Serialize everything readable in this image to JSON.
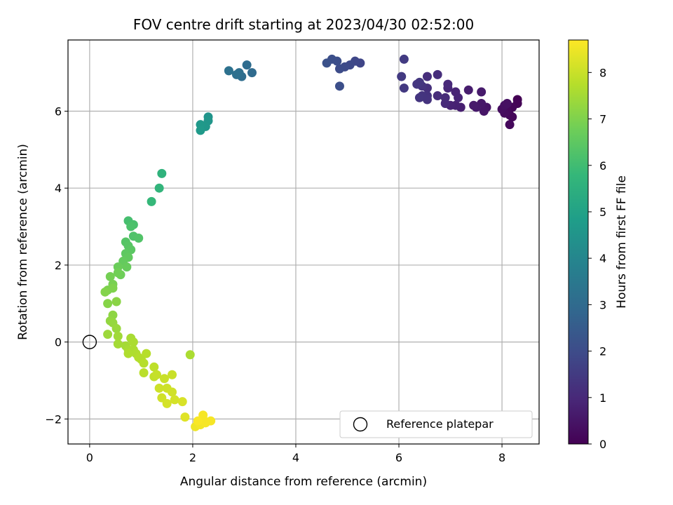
{
  "chart_data": {
    "type": "scatter",
    "title": "FOV centre drift starting at 2023/04/30 02:52:00",
    "xlabel": "Angular distance from reference (arcmin)",
    "ylabel": "Rotation from reference (arcmin)",
    "xlim": [
      -0.42,
      8.72
    ],
    "ylim": [
      -2.65,
      7.85
    ],
    "xticks": [
      0,
      2,
      4,
      6,
      8
    ],
    "yticks": [
      -2,
      0,
      2,
      4,
      6
    ],
    "grid": true,
    "colormap": "viridis",
    "colorbar": {
      "label": "Hours from first FF file",
      "range": [
        0,
        8.7
      ],
      "ticks": [
        0,
        1,
        2,
        3,
        4,
        5,
        6,
        7,
        8
      ]
    },
    "legend": {
      "position": "bottom-right",
      "entries": [
        "Reference platepar"
      ]
    },
    "reference_point": {
      "x": 0,
      "y": 0
    },
    "points": [
      {
        "x": 8.3,
        "y": 6.3,
        "c": 0.0
      },
      {
        "x": 8.3,
        "y": 6.2,
        "c": 0.05
      },
      {
        "x": 8.2,
        "y": 6.1,
        "c": 0.1
      },
      {
        "x": 8.15,
        "y": 5.9,
        "c": 0.12
      },
      {
        "x": 8.2,
        "y": 5.85,
        "c": 0.15
      },
      {
        "x": 8.15,
        "y": 5.65,
        "c": 0.18
      },
      {
        "x": 8.1,
        "y": 6.0,
        "c": 0.2
      },
      {
        "x": 8.05,
        "y": 5.95,
        "c": 0.25
      },
      {
        "x": 8.0,
        "y": 6.05,
        "c": 0.3
      },
      {
        "x": 8.05,
        "y": 6.15,
        "c": 0.35
      },
      {
        "x": 8.1,
        "y": 6.2,
        "c": 0.38
      },
      {
        "x": 7.7,
        "y": 6.1,
        "c": 0.45
      },
      {
        "x": 7.65,
        "y": 6.0,
        "c": 0.5
      },
      {
        "x": 7.6,
        "y": 6.2,
        "c": 0.55
      },
      {
        "x": 7.5,
        "y": 6.1,
        "c": 0.6
      },
      {
        "x": 7.45,
        "y": 6.15,
        "c": 0.62
      },
      {
        "x": 7.6,
        "y": 6.5,
        "c": 0.65
      },
      {
        "x": 7.35,
        "y": 6.55,
        "c": 0.7
      },
      {
        "x": 7.2,
        "y": 6.1,
        "c": 0.75
      },
      {
        "x": 7.1,
        "y": 6.15,
        "c": 0.8
      },
      {
        "x": 7.0,
        "y": 6.15,
        "c": 0.85
      },
      {
        "x": 7.1,
        "y": 6.5,
        "c": 0.88
      },
      {
        "x": 7.15,
        "y": 6.35,
        "c": 0.9
      },
      {
        "x": 6.95,
        "y": 6.6,
        "c": 0.95
      },
      {
        "x": 6.95,
        "y": 6.7,
        "c": 1.0
      },
      {
        "x": 6.9,
        "y": 6.2,
        "c": 1.02
      },
      {
        "x": 6.9,
        "y": 6.35,
        "c": 1.05
      },
      {
        "x": 6.75,
        "y": 6.4,
        "c": 1.1
      },
      {
        "x": 6.75,
        "y": 6.95,
        "c": 1.12
      },
      {
        "x": 6.55,
        "y": 6.9,
        "c": 1.15
      },
      {
        "x": 6.55,
        "y": 6.6,
        "c": 1.2
      },
      {
        "x": 6.55,
        "y": 6.4,
        "c": 1.25
      },
      {
        "x": 6.55,
        "y": 6.3,
        "c": 1.28
      },
      {
        "x": 6.45,
        "y": 6.65,
        "c": 1.3
      },
      {
        "x": 6.45,
        "y": 6.4,
        "c": 1.32
      },
      {
        "x": 6.4,
        "y": 6.35,
        "c": 1.35
      },
      {
        "x": 6.4,
        "y": 6.75,
        "c": 1.38
      },
      {
        "x": 6.35,
        "y": 6.7,
        "c": 1.4
      },
      {
        "x": 6.1,
        "y": 6.6,
        "c": 1.45
      },
      {
        "x": 6.05,
        "y": 6.9,
        "c": 1.48
      },
      {
        "x": 6.1,
        "y": 7.35,
        "c": 1.52
      },
      {
        "x": 5.25,
        "y": 7.25,
        "c": 1.8
      },
      {
        "x": 5.15,
        "y": 7.3,
        "c": 1.85
      },
      {
        "x": 5.05,
        "y": 7.2,
        "c": 1.9
      },
      {
        "x": 4.95,
        "y": 7.15,
        "c": 1.95
      },
      {
        "x": 4.85,
        "y": 7.1,
        "c": 2.0
      },
      {
        "x": 4.8,
        "y": 7.3,
        "c": 2.05
      },
      {
        "x": 4.7,
        "y": 7.35,
        "c": 2.1
      },
      {
        "x": 4.6,
        "y": 7.25,
        "c": 2.15
      },
      {
        "x": 4.85,
        "y": 6.65,
        "c": 2.1
      },
      {
        "x": 3.15,
        "y": 7.0,
        "c": 3.0
      },
      {
        "x": 3.05,
        "y": 7.2,
        "c": 3.05
      },
      {
        "x": 2.95,
        "y": 6.9,
        "c": 3.1
      },
      {
        "x": 2.9,
        "y": 7.0,
        "c": 3.15
      },
      {
        "x": 2.85,
        "y": 6.95,
        "c": 3.2
      },
      {
        "x": 2.7,
        "y": 7.05,
        "c": 3.25
      },
      {
        "x": 2.3,
        "y": 5.85,
        "c": 4.5
      },
      {
        "x": 2.3,
        "y": 5.75,
        "c": 4.55
      },
      {
        "x": 2.25,
        "y": 5.6,
        "c": 4.6
      },
      {
        "x": 2.15,
        "y": 5.65,
        "c": 4.65
      },
      {
        "x": 2.15,
        "y": 5.5,
        "c": 4.7
      },
      {
        "x": 1.4,
        "y": 4.38,
        "c": 5.6
      },
      {
        "x": 1.35,
        "y": 4.0,
        "c": 5.7
      },
      {
        "x": 1.2,
        "y": 3.65,
        "c": 5.8
      },
      {
        "x": 0.75,
        "y": 3.15,
        "c": 6.1
      },
      {
        "x": 0.85,
        "y": 3.05,
        "c": 6.15
      },
      {
        "x": 0.8,
        "y": 3.0,
        "c": 6.2
      },
      {
        "x": 0.85,
        "y": 2.75,
        "c": 6.25
      },
      {
        "x": 0.95,
        "y": 2.7,
        "c": 6.3
      },
      {
        "x": 0.7,
        "y": 2.6,
        "c": 6.35
      },
      {
        "x": 0.75,
        "y": 2.5,
        "c": 6.4
      },
      {
        "x": 0.8,
        "y": 2.4,
        "c": 6.45
      },
      {
        "x": 0.7,
        "y": 2.3,
        "c": 6.5
      },
      {
        "x": 0.75,
        "y": 2.2,
        "c": 6.55
      },
      {
        "x": 0.65,
        "y": 2.1,
        "c": 6.6
      },
      {
        "x": 0.72,
        "y": 1.95,
        "c": 6.65
      },
      {
        "x": 0.55,
        "y": 1.95,
        "c": 6.7
      },
      {
        "x": 0.6,
        "y": 1.75,
        "c": 6.75
      },
      {
        "x": 0.55,
        "y": 1.8,
        "c": 6.8
      },
      {
        "x": 0.4,
        "y": 1.7,
        "c": 6.85
      },
      {
        "x": 0.45,
        "y": 1.5,
        "c": 6.9
      },
      {
        "x": 0.35,
        "y": 1.35,
        "c": 6.95
      },
      {
        "x": 0.45,
        "y": 1.4,
        "c": 7.0
      },
      {
        "x": 0.3,
        "y": 1.3,
        "c": 7.05
      },
      {
        "x": 0.35,
        "y": 1.0,
        "c": 7.1
      },
      {
        "x": 0.52,
        "y": 1.05,
        "c": 7.15
      },
      {
        "x": 0.45,
        "y": 0.7,
        "c": 7.2
      },
      {
        "x": 0.4,
        "y": 0.55,
        "c": 7.25
      },
      {
        "x": 0.45,
        "y": 0.5,
        "c": 7.3
      },
      {
        "x": 0.52,
        "y": 0.35,
        "c": 7.35
      },
      {
        "x": 0.35,
        "y": 0.2,
        "c": 7.4
      },
      {
        "x": 0.55,
        "y": 0.15,
        "c": 7.45
      },
      {
        "x": 0.55,
        "y": -0.05,
        "c": 7.5
      },
      {
        "x": 0.7,
        "y": -0.1,
        "c": 7.5
      },
      {
        "x": 0.75,
        "y": -0.2,
        "c": 7.55
      },
      {
        "x": 0.8,
        "y": 0.1,
        "c": 7.55
      },
      {
        "x": 0.85,
        "y": 0.0,
        "c": 7.6
      },
      {
        "x": 0.85,
        "y": -0.2,
        "c": 7.6
      },
      {
        "x": 0.75,
        "y": -0.3,
        "c": 7.65
      },
      {
        "x": 0.9,
        "y": -0.3,
        "c": 7.65
      },
      {
        "x": 0.95,
        "y": -0.4,
        "c": 7.7
      },
      {
        "x": 1.0,
        "y": -0.45,
        "c": 7.7
      },
      {
        "x": 1.1,
        "y": -0.3,
        "c": 7.75
      },
      {
        "x": 1.05,
        "y": -0.55,
        "c": 7.75
      },
      {
        "x": 1.05,
        "y": -0.8,
        "c": 7.8
      },
      {
        "x": 1.95,
        "y": -0.33,
        "c": 7.6
      },
      {
        "x": 1.25,
        "y": -0.65,
        "c": 7.85
      },
      {
        "x": 1.25,
        "y": -0.9,
        "c": 7.9
      },
      {
        "x": 1.3,
        "y": -0.85,
        "c": 7.95
      },
      {
        "x": 1.6,
        "y": -0.85,
        "c": 8.0
      },
      {
        "x": 1.45,
        "y": -0.95,
        "c": 8.0
      },
      {
        "x": 1.35,
        "y": -1.2,
        "c": 8.05
      },
      {
        "x": 1.5,
        "y": -1.2,
        "c": 8.05
      },
      {
        "x": 1.6,
        "y": -1.3,
        "c": 8.1
      },
      {
        "x": 1.4,
        "y": -1.45,
        "c": 8.1
      },
      {
        "x": 1.5,
        "y": -1.6,
        "c": 8.15
      },
      {
        "x": 1.65,
        "y": -1.5,
        "c": 8.15
      },
      {
        "x": 1.8,
        "y": -1.55,
        "c": 8.2
      },
      {
        "x": 1.85,
        "y": -1.95,
        "c": 8.3
      },
      {
        "x": 2.05,
        "y": -2.2,
        "c": 8.5
      },
      {
        "x": 2.15,
        "y": -2.15,
        "c": 8.55
      },
      {
        "x": 2.2,
        "y": -2.0,
        "c": 8.55
      },
      {
        "x": 2.25,
        "y": -2.1,
        "c": 8.6
      },
      {
        "x": 2.35,
        "y": -2.05,
        "c": 8.6
      },
      {
        "x": 2.2,
        "y": -1.9,
        "c": 8.6
      },
      {
        "x": 2.1,
        "y": -2.05,
        "c": 8.65
      }
    ]
  }
}
